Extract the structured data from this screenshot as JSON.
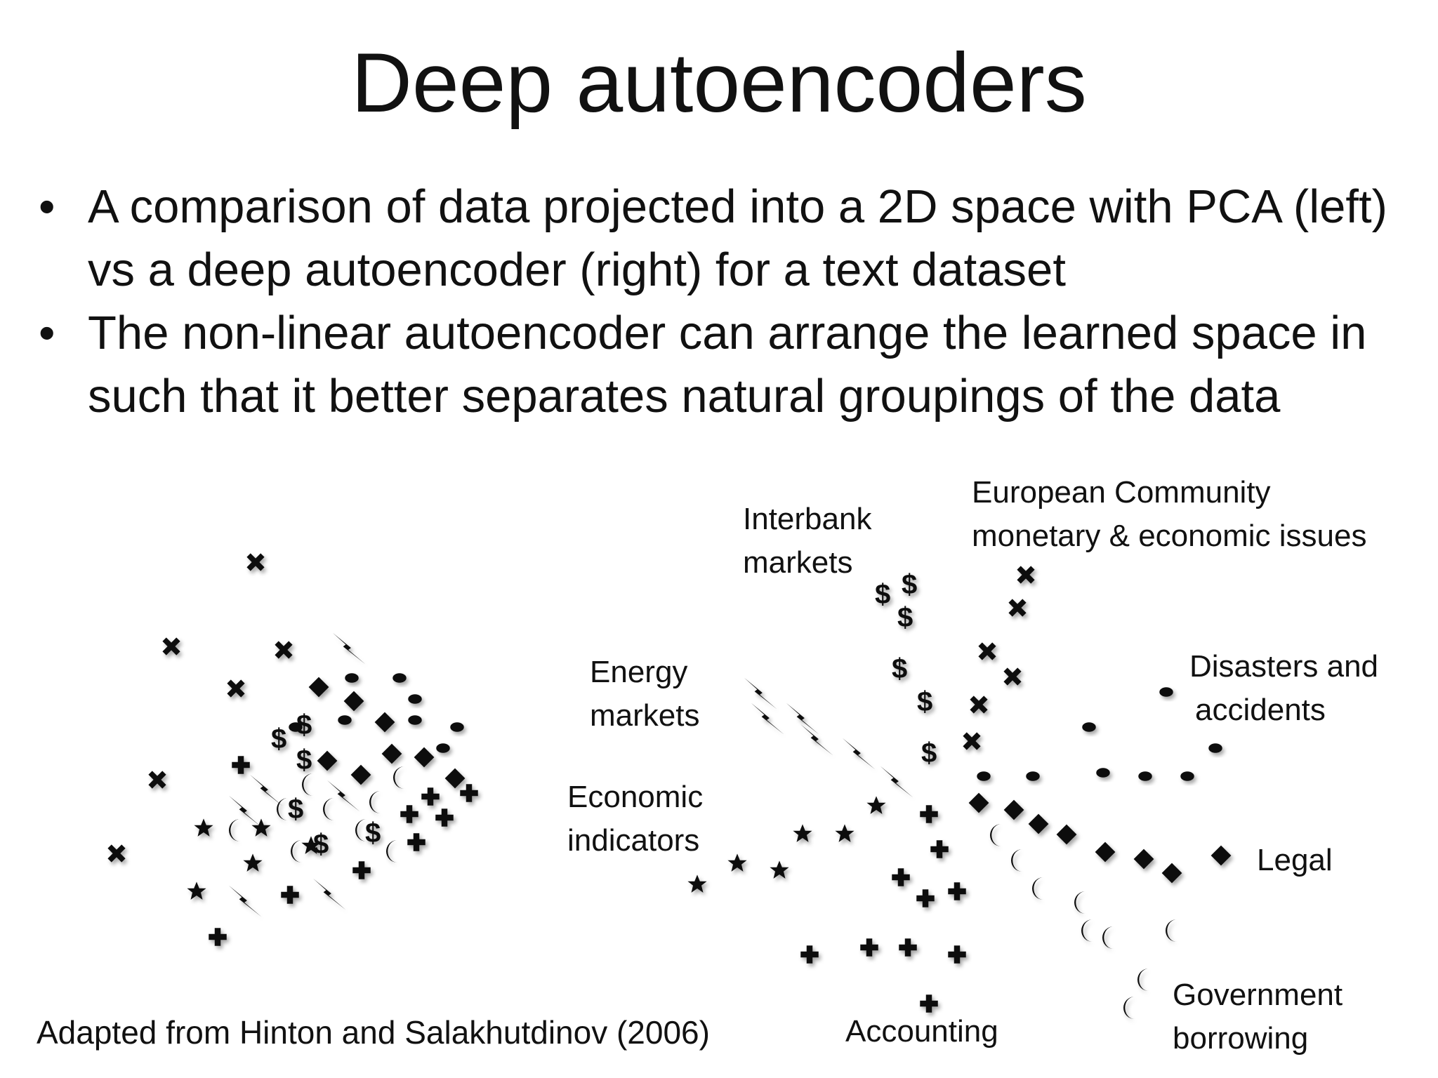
{
  "title": "Deep autoencoders",
  "bullets": [
    "A comparison of data projected into a 2D space with PCA (left) vs a deep autoencoder (right) for a text dataset",
    "The non-linear autoencoder can arrange the learned space in such that it better separates natural groupings of the data"
  ],
  "bullet_glyph": "•",
  "credit": "Adapted from Hinton and Salakhutdinov (2006)",
  "cluster_labels": {
    "interbank": [
      "Interbank",
      "markets"
    ],
    "european": [
      "European Community",
      "monetary & economic issues"
    ],
    "energy": [
      "Energy",
      "markets"
    ],
    "disasters": [
      "Disasters and",
      "accidents"
    ],
    "economic": [
      "Economic",
      "indicators"
    ],
    "legal": [
      "Legal"
    ],
    "accounting": [
      "Accounting"
    ],
    "government": [
      "Government",
      "borrowing"
    ]
  },
  "marker_icons": {
    "interbank": "dollar-icon",
    "european": "cross-x-icon",
    "energy": "lightning-icon",
    "disasters": "ellipse-icon",
    "economic": "star-icon",
    "legal": "diamond-icon",
    "accounting": "plus-icon",
    "government": "crescent-icon"
  }
}
